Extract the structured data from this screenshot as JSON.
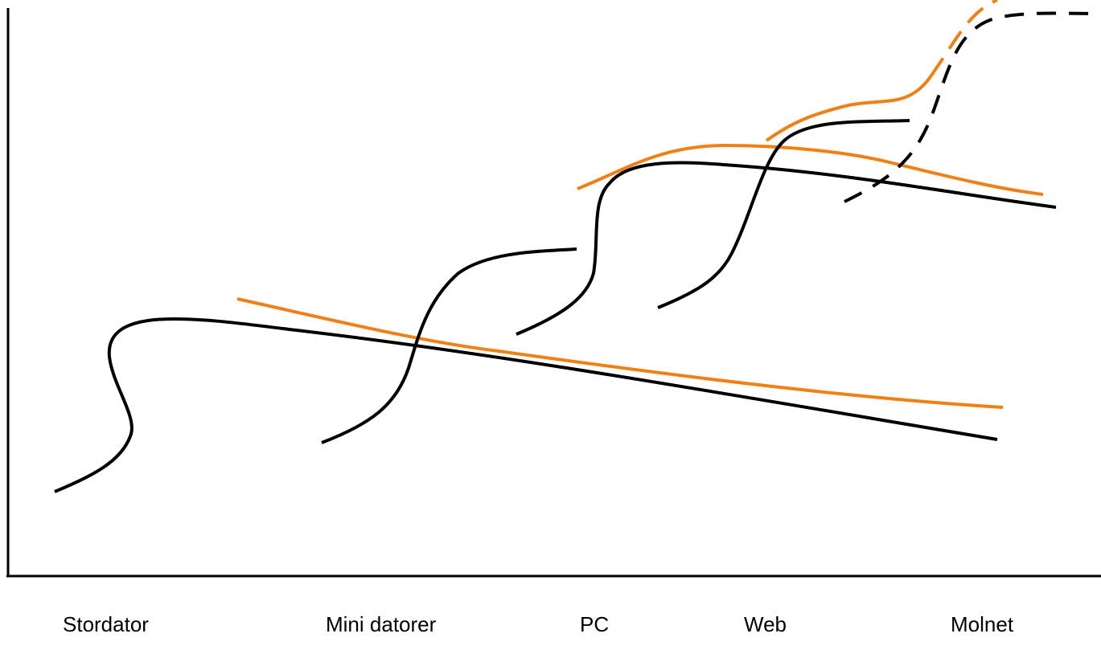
{
  "colors": {
    "primary_curve": "#000000",
    "secondary_curve": "#f07f14",
    "axis": "#000000",
    "background": "#ffffff"
  },
  "eras": [
    {
      "key": "stordator",
      "label": "Stordator"
    },
    {
      "key": "mini",
      "label": "Mini datorer"
    },
    {
      "key": "pc",
      "label": "PC"
    },
    {
      "key": "web",
      "label": "Web"
    },
    {
      "key": "molnet",
      "label": "Molnet"
    }
  ]
}
